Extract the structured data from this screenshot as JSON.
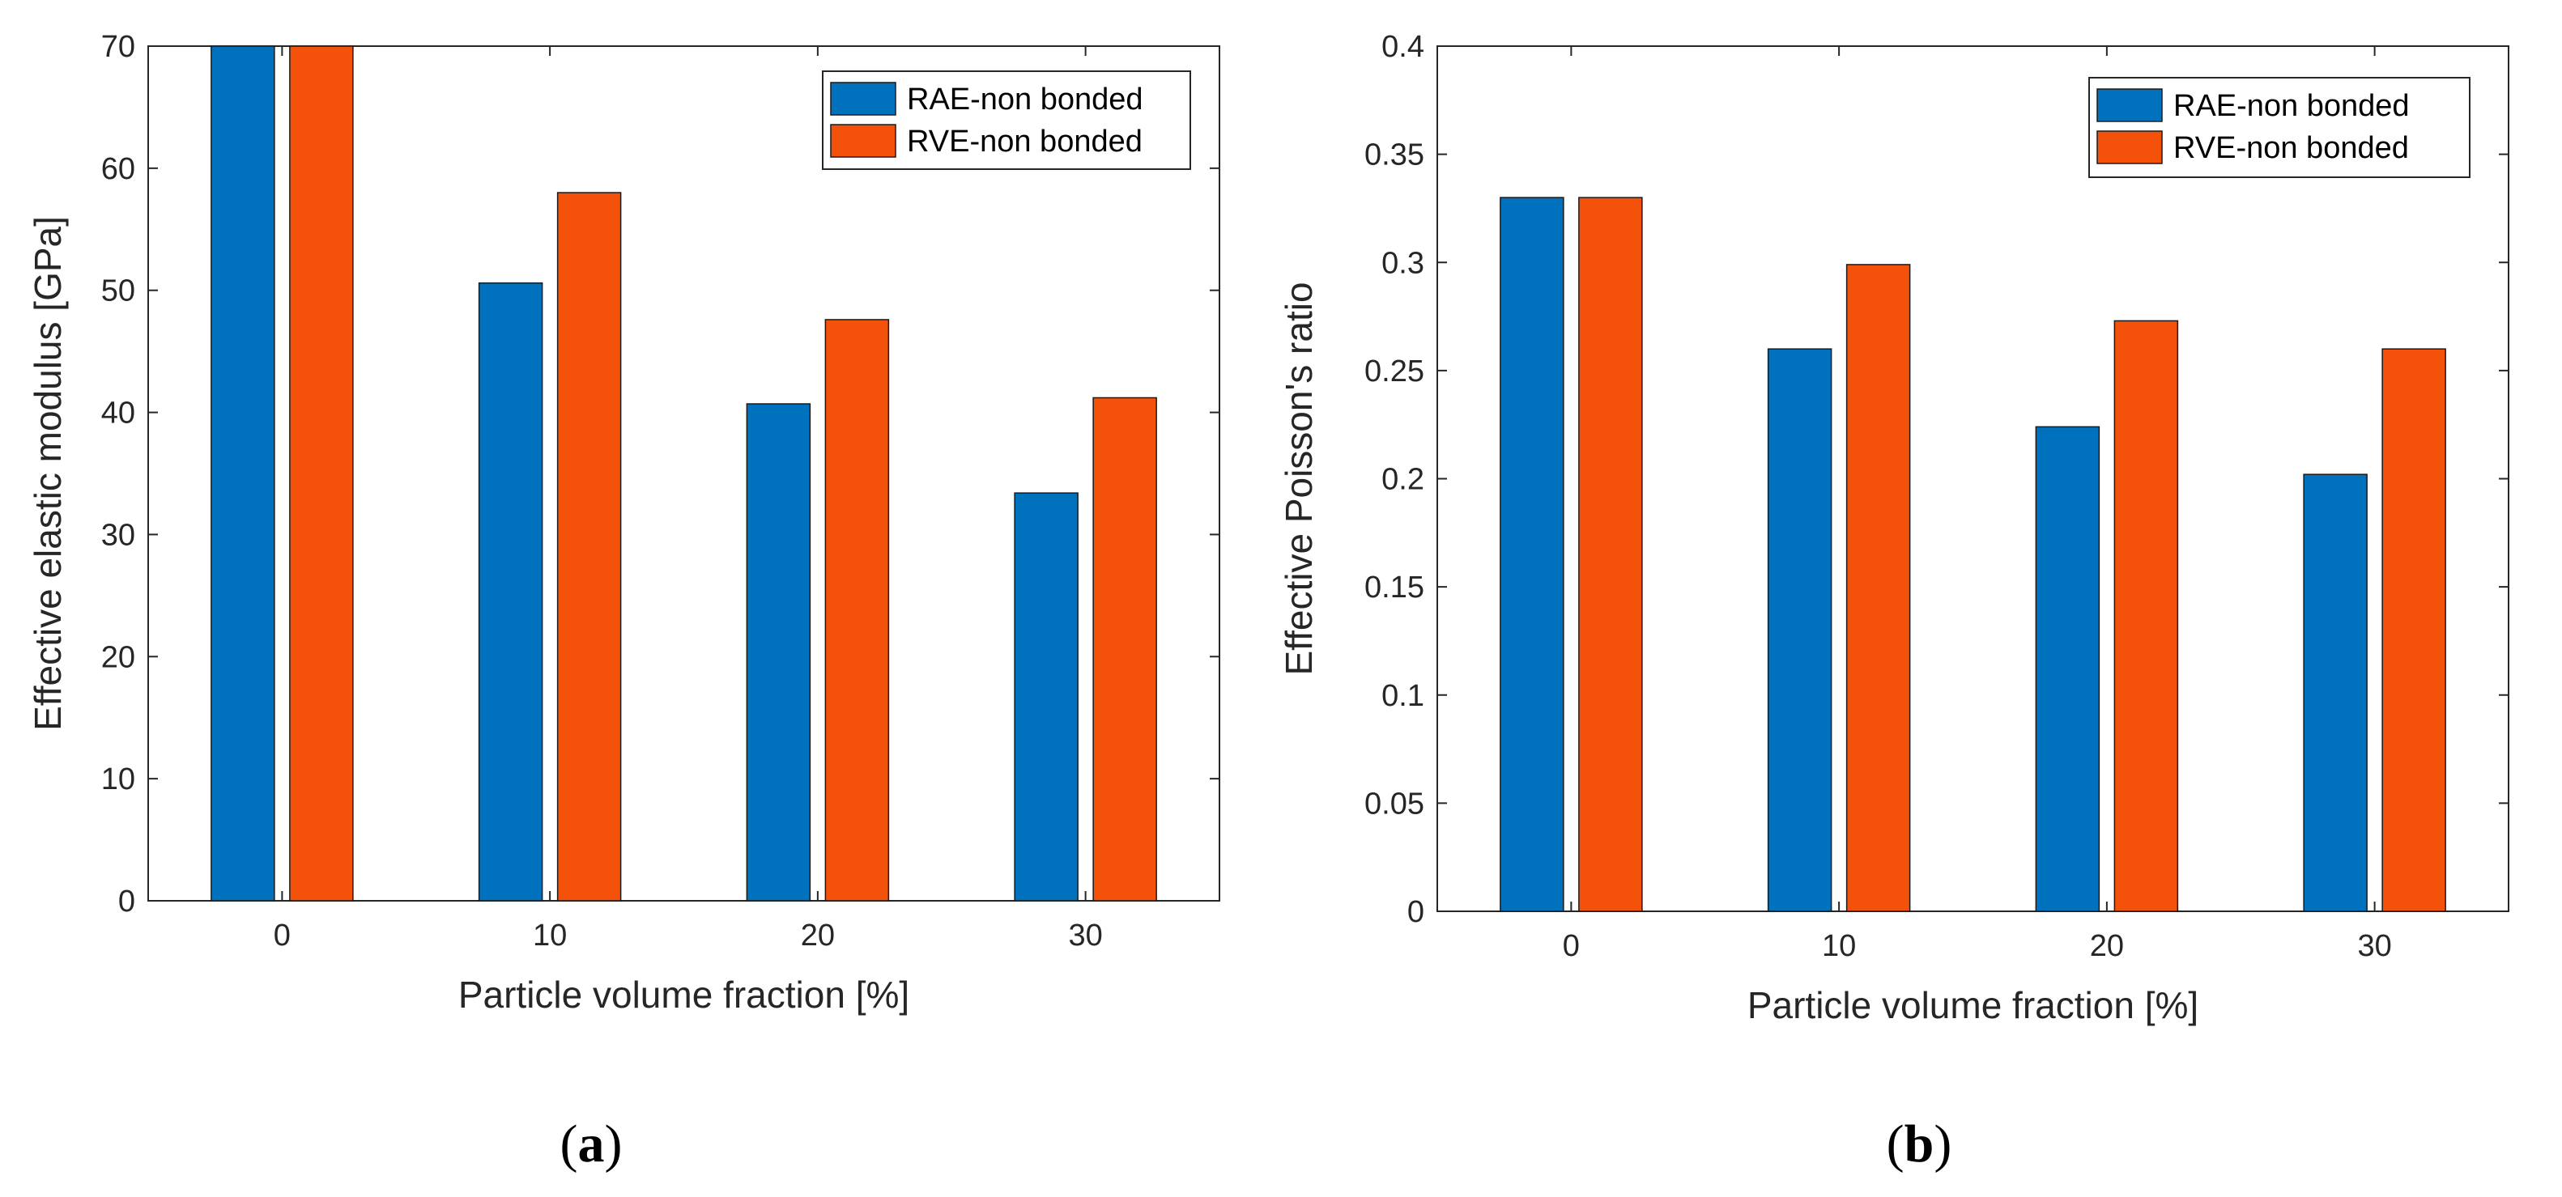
{
  "colors": {
    "rae": "#0072BD",
    "rve": "#F4520A"
  },
  "chart_data": [
    {
      "type": "bar",
      "caption": [
        "(",
        "a",
        ")"
      ],
      "xlabel": "Particle volume fraction [%]",
      "ylabel": "Effective elastic modulus [GPa]",
      "categories": [
        "0",
        "10",
        "20",
        "30"
      ],
      "ylim": [
        0,
        70
      ],
      "yticks": [
        "0",
        "10",
        "20",
        "30",
        "40",
        "50",
        "60",
        "70"
      ],
      "legend_position": "top-right",
      "series": [
        {
          "name": "RAE-non bonded",
          "values": [
            70,
            50.6,
            40.7,
            33.4
          ]
        },
        {
          "name": "RVE-non bonded",
          "values": [
            70,
            58.0,
            47.6,
            41.2
          ]
        }
      ]
    },
    {
      "type": "bar",
      "caption": [
        "(",
        "b",
        ")"
      ],
      "xlabel": "Particle volume fraction [%]",
      "ylabel": "Effective Poisson's ratio",
      "categories": [
        "0",
        "10",
        "20",
        "30"
      ],
      "ylim": [
        0,
        0.4
      ],
      "yticks": [
        "0",
        "0.05",
        "0.1",
        "0.15",
        "0.2",
        "0.25",
        "0.3",
        "0.35",
        "0.4"
      ],
      "legend_position": "top-right",
      "series": [
        {
          "name": "RAE-non bonded",
          "values": [
            0.33,
            0.26,
            0.224,
            0.202
          ]
        },
        {
          "name": "RVE-non bonded",
          "values": [
            0.33,
            0.299,
            0.273,
            0.26
          ]
        }
      ]
    }
  ]
}
